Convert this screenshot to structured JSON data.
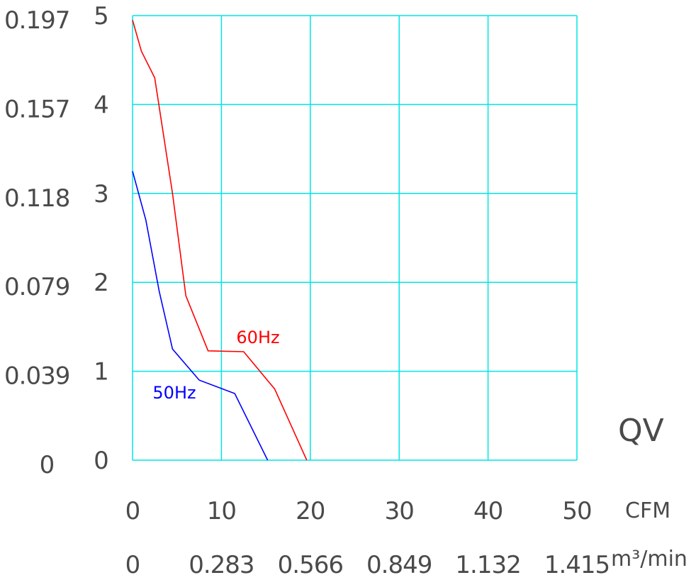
{
  "chart_data": {
    "type": "line",
    "x": {
      "unit": "CFM",
      "range": [
        0,
        50
      ],
      "ticks": [
        "0",
        "10",
        "20",
        "30",
        "40",
        "50"
      ],
      "secondary_unit": "m3/min",
      "secondary_unit_display": "m³/min",
      "secondary_ticks": [
        "0",
        "0.283",
        "0.566",
        "0.849",
        "1.132",
        "1.415"
      ]
    },
    "y": {
      "range": [
        0,
        5
      ],
      "ticks": [
        "0",
        "1",
        "2",
        "3",
        "4",
        "5"
      ],
      "secondary_ticks": [
        "0",
        "0.039",
        "0.079",
        "0.118",
        "0.157",
        "0.197"
      ]
    },
    "corner_label": "QV",
    "grid": true,
    "series": [
      {
        "name": "60Hz",
        "color": "#ff0000",
        "points": [
          [
            0,
            4.95
          ],
          [
            1,
            4.6
          ],
          [
            2.5,
            4.3
          ],
          [
            4.5,
            3.0
          ],
          [
            6,
            1.85
          ],
          [
            8.5,
            1.23
          ],
          [
            12.5,
            1.22
          ],
          [
            16,
            0.8
          ],
          [
            19.6,
            0
          ]
        ]
      },
      {
        "name": "50Hz",
        "color": "#0000ff",
        "points": [
          [
            0,
            3.25
          ],
          [
            1.5,
            2.7
          ],
          [
            3,
            1.9
          ],
          [
            4.5,
            1.25
          ],
          [
            7.5,
            0.9
          ],
          [
            11.5,
            0.75
          ],
          [
            15.2,
            0
          ]
        ]
      }
    ]
  }
}
